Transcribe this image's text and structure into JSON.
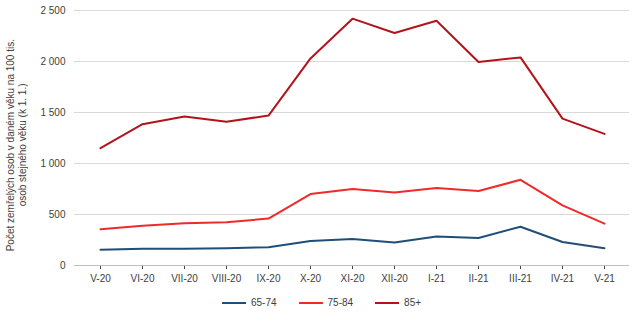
{
  "chart_data": {
    "type": "line",
    "y_label": "Počet zemřelých osob v daném věku na 100 tis. osob stejného věku (k 1. 1.)",
    "categories": [
      "V-20",
      "VI-20",
      "VII-20",
      "VIII-20",
      "IX-20",
      "X-20",
      "XI-20",
      "XII-20",
      "I-21",
      "II-21",
      "III-21",
      "IV-21",
      "V-21"
    ],
    "series": [
      {
        "name": "65-74",
        "color": "#1f4e79",
        "values": [
          155,
          165,
          165,
          170,
          180,
          240,
          260,
          225,
          285,
          270,
          380,
          230,
          170
        ]
      },
      {
        "name": "75-84",
        "color": "#ee2a2a",
        "values": [
          355,
          390,
          415,
          425,
          460,
          700,
          750,
          715,
          760,
          730,
          840,
          590,
          410
        ]
      },
      {
        "name": "85+",
        "color": "#b3131b",
        "values": [
          1150,
          1385,
          1460,
          1410,
          1470,
          2030,
          2420,
          2280,
          2400,
          1995,
          2040,
          1440,
          1290
        ]
      }
    ],
    "ylim": [
      0,
      2500
    ],
    "yticks": [
      0,
      500,
      {
        "value": 1000,
        "label": "1 000"
      },
      {
        "value": 1500,
        "label": "1 500"
      },
      {
        "value": 2000,
        "label": "2 000"
      },
      {
        "value": 2500,
        "label": "2 500"
      }
    ],
    "grid": true,
    "legend": "bottom"
  }
}
